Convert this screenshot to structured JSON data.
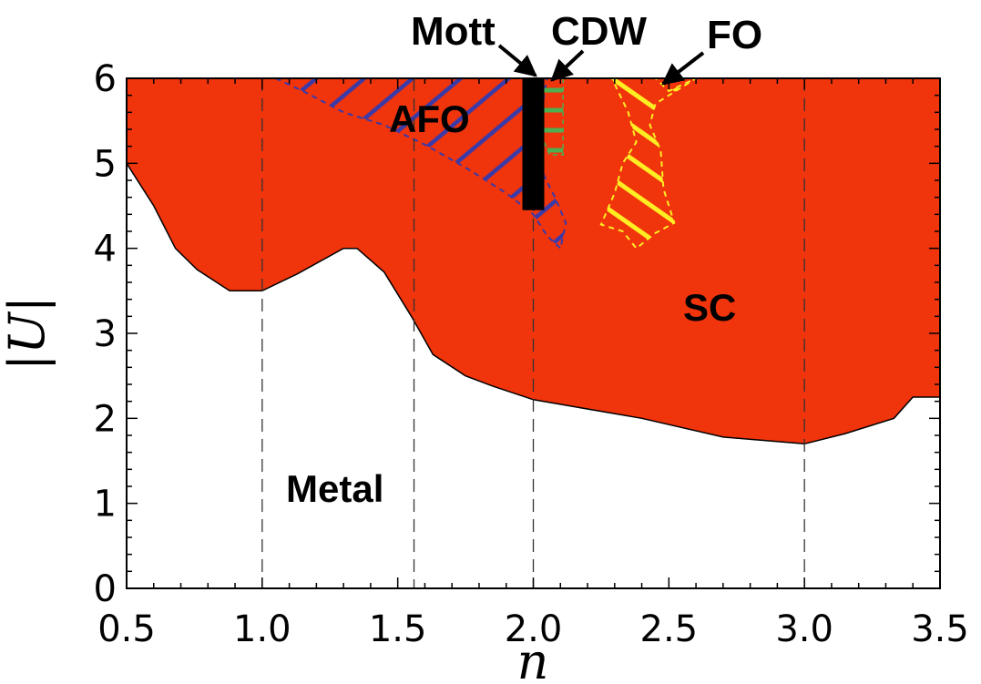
{
  "chart_data": {
    "type": "area",
    "xlabel": "n",
    "ylabel": "|U|",
    "xlim": [
      0.5,
      3.5
    ],
    "ylim": [
      0,
      6
    ],
    "xticks": [
      "0.5",
      "1.0",
      "1.5",
      "2.0",
      "2.5",
      "3.0",
      "3.5"
    ],
    "yticks": [
      "0",
      "1",
      "2",
      "3",
      "4",
      "5",
      "6"
    ],
    "grid": "dashed vertical lines at n = 1.0, 1.56, 2.0, 3.0",
    "colors": {
      "sc": "#f0340c",
      "afo": "#3a3aa8",
      "cdw": "#4caf50",
      "fo": "#ffee22",
      "mott": "#000000"
    },
    "regions": [
      {
        "name": "SC",
        "boundary": [
          [
            0.5,
            5.0
          ],
          [
            0.6,
            4.5
          ],
          [
            0.68,
            4.0
          ],
          [
            0.76,
            3.75
          ],
          [
            0.88,
            3.5
          ],
          [
            1.0,
            3.5
          ],
          [
            1.13,
            3.7
          ],
          [
            1.3,
            4.0
          ],
          [
            1.35,
            4.0
          ],
          [
            1.45,
            3.72
          ],
          [
            1.55,
            3.2
          ],
          [
            1.63,
            2.75
          ],
          [
            1.75,
            2.5
          ],
          [
            1.85,
            2.38
          ],
          [
            2.0,
            2.22
          ],
          [
            2.4,
            2.0
          ],
          [
            2.7,
            1.78
          ],
          [
            3.0,
            1.7
          ],
          [
            3.15,
            1.82
          ],
          [
            3.33,
            2.0
          ],
          [
            3.4,
            2.25
          ],
          [
            3.5,
            2.25
          ]
        ]
      },
      {
        "name": "AFO",
        "boundary": [
          [
            1.05,
            6.0
          ],
          [
            1.15,
            5.85
          ],
          [
            1.3,
            5.6
          ],
          [
            1.45,
            5.45
          ],
          [
            1.6,
            5.22
          ],
          [
            1.75,
            4.95
          ],
          [
            1.9,
            4.65
          ],
          [
            2.0,
            4.4
          ],
          [
            2.05,
            4.15
          ],
          [
            2.1,
            4.0
          ],
          [
            2.12,
            4.3
          ],
          [
            2.08,
            4.6
          ],
          [
            2.04,
            4.85
          ],
          [
            2.02,
            5.2
          ],
          [
            2.03,
            5.6
          ],
          [
            2.05,
            6.0
          ]
        ]
      },
      {
        "name": "FO",
        "boundary": [
          [
            2.29,
            6.0
          ],
          [
            2.45,
            6.0
          ],
          [
            2.5,
            5.85
          ],
          [
            2.6,
            6.0
          ],
          [
            2.45,
            5.7
          ],
          [
            2.43,
            5.45
          ],
          [
            2.47,
            5.15
          ],
          [
            2.48,
            4.7
          ],
          [
            2.52,
            4.3
          ],
          [
            2.45,
            4.18
          ],
          [
            2.38,
            4.0
          ],
          [
            2.33,
            4.2
          ],
          [
            2.25,
            4.28
          ],
          [
            2.3,
            4.65
          ],
          [
            2.33,
            5.0
          ],
          [
            2.38,
            5.25
          ],
          [
            2.35,
            5.6
          ]
        ]
      },
      {
        "name": "CDW",
        "boundary": [
          [
            2.02,
            6.0
          ],
          [
            2.11,
            6.0
          ],
          [
            2.11,
            5.1
          ],
          [
            2.06,
            5.1
          ],
          [
            2.02,
            5.4
          ]
        ]
      },
      {
        "name": "Mott",
        "line": {
          "n": 2.0,
          "U_min": 4.45,
          "U_max": 6.0
        }
      },
      {
        "name": "Metal"
      }
    ],
    "annotations": [
      "Mott",
      "CDW",
      "FO",
      "AFO",
      "SC",
      "Metal"
    ],
    "gridlines_x": [
      1.0,
      1.56,
      2.0,
      3.0
    ]
  }
}
